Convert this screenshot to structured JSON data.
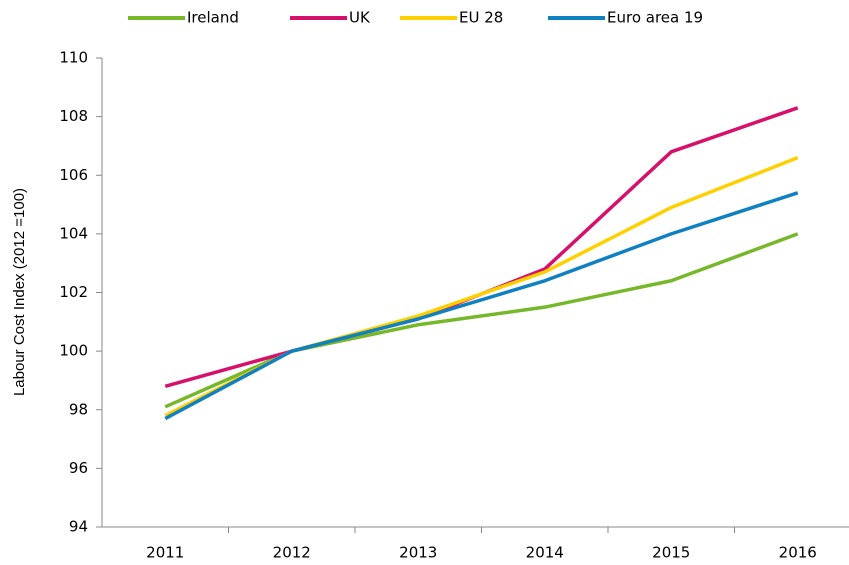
{
  "chart_data": {
    "type": "line",
    "y_label": "Labour Cost Index (2012 =100)",
    "categories": [
      "2011",
      "2012",
      "2013",
      "2014",
      "2015",
      "2016"
    ],
    "series": [
      {
        "name": "Ireland",
        "color": "#76b82a",
        "values": [
          98.1,
          100,
          100.9,
          101.5,
          102.4,
          104
        ]
      },
      {
        "name": "UK",
        "color": "#d6116b",
        "values": [
          98.8,
          100,
          101.1,
          102.8,
          106.8,
          108.3
        ]
      },
      {
        "name": "EU 28",
        "color": "#ffd000",
        "values": [
          97.8,
          100,
          101.2,
          102.7,
          104.9,
          106.6
        ]
      },
      {
        "name": "Euro area 19",
        "color": "#0f80c1",
        "values": [
          97.7,
          100,
          101.1,
          102.4,
          104.0,
          105.4
        ]
      }
    ],
    "ylim": [
      94,
      110
    ],
    "yticks": [
      94,
      96,
      98,
      100,
      102,
      104,
      106,
      108,
      110
    ],
    "grid": false,
    "legend": "top"
  }
}
